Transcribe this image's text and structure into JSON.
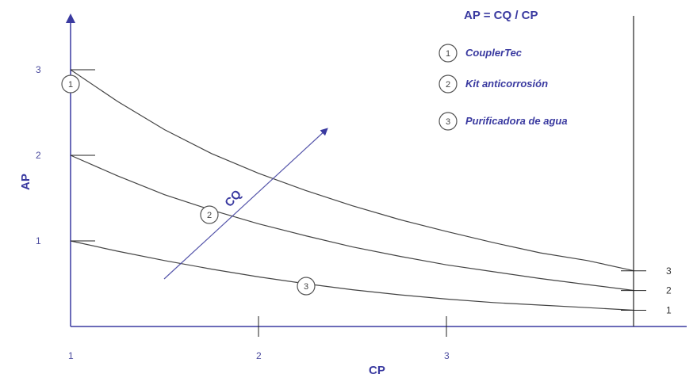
{
  "chart_data": {
    "type": "line",
    "title": "AP = CQ / CP",
    "xlabel": "CP",
    "ylabel": "AP",
    "arrow_label": "CQ",
    "x_ticks": [
      "1",
      "2",
      "3"
    ],
    "y_ticks": [
      "1",
      "2",
      "3"
    ],
    "xlim": [
      1,
      4.1
    ],
    "ylim": [
      0,
      3.6
    ],
    "series": [
      {
        "id": "1",
        "name": "CouplerTec",
        "end_label": "3",
        "x": [
          1,
          1.25,
          1.5,
          1.75,
          2,
          2.25,
          2.5,
          2.75,
          3,
          3.25,
          3.5,
          3.75,
          4.0
        ],
        "y": [
          3.0,
          2.63,
          2.3,
          2.02,
          1.79,
          1.59,
          1.41,
          1.25,
          1.11,
          0.98,
          0.86,
          0.77,
          0.65
        ]
      },
      {
        "id": "2",
        "name": "Kit anticorrosión",
        "end_label": "2",
        "x": [
          1,
          1.25,
          1.5,
          1.75,
          2,
          2.25,
          2.5,
          2.75,
          3,
          3.25,
          3.5,
          3.75,
          4.0
        ],
        "y": [
          2.0,
          1.76,
          1.54,
          1.36,
          1.2,
          1.06,
          0.93,
          0.82,
          0.72,
          0.64,
          0.56,
          0.49,
          0.42
        ]
      },
      {
        "id": "3",
        "name": "Purificadora de agua",
        "end_label": "1",
        "x": [
          1,
          1.25,
          1.5,
          1.75,
          2,
          2.25,
          2.5,
          2.75,
          3,
          3.25,
          3.5,
          3.75,
          4.0
        ],
        "y": [
          1.0,
          0.88,
          0.77,
          0.67,
          0.58,
          0.5,
          0.43,
          0.37,
          0.32,
          0.28,
          0.25,
          0.22,
          0.19
        ]
      }
    ],
    "legend": [
      {
        "number": "1",
        "label": "CouplerTec"
      },
      {
        "number": "2",
        "label": "Kit anticorrosión"
      },
      {
        "number": "3",
        "label": "Purificadora de agua"
      }
    ],
    "legend_position": "top-right",
    "grid": false,
    "colors": {
      "axis": "#3a3aa0",
      "curve": "#444444",
      "arrow": "#5555aa"
    }
  }
}
